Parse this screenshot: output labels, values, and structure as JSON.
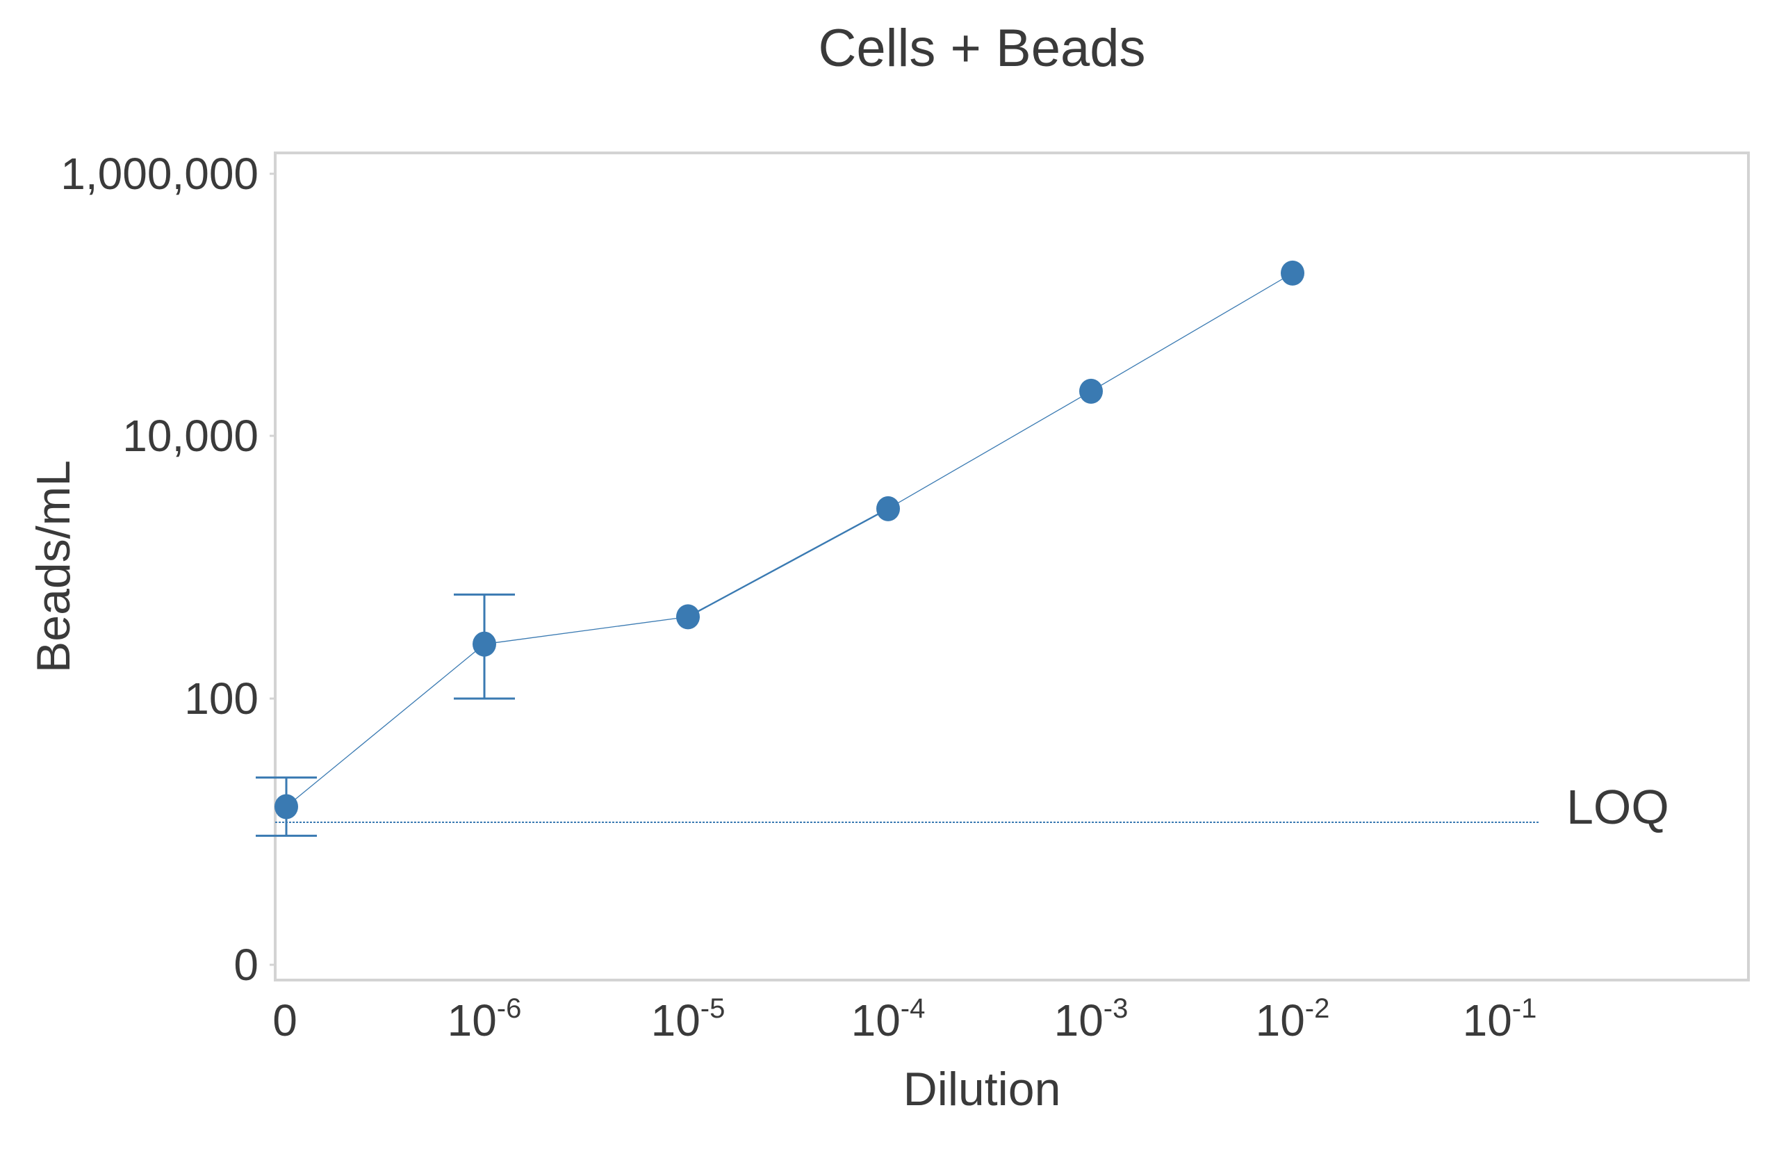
{
  "chart_data": {
    "type": "scatter",
    "title": "Cells + Beads",
    "xlabel": "Dilution",
    "ylabel": "Beads/mL",
    "x_ticks": [
      {
        "base": "0",
        "exp": ""
      },
      {
        "base": "10",
        "exp": "-6"
      },
      {
        "base": "10",
        "exp": "-5"
      },
      {
        "base": "10",
        "exp": "-4"
      },
      {
        "base": "10",
        "exp": "-3"
      },
      {
        "base": "10",
        "exp": "-2"
      },
      {
        "base": "10",
        "exp": "-1"
      }
    ],
    "y_ticks": [
      "1,000,000",
      "10,000",
      "100",
      "0"
    ],
    "y_scale": "log",
    "grid": false,
    "series": [
      {
        "color": "#3a7ab2",
        "points": [
          {
            "x": "0",
            "y": 15,
            "err_low": 9,
            "err_high": 25
          },
          {
            "x": "10^-6",
            "y": 260,
            "err_low": 100,
            "err_high": 620
          },
          {
            "x": "10^-5",
            "y": 420,
            "err_low": null,
            "err_high": null
          },
          {
            "x": "10^-4",
            "y": 2800,
            "err_low": null,
            "err_high": null
          },
          {
            "x": "10^-3",
            "y": 22000,
            "err_low": null,
            "err_high": null
          },
          {
            "x": "10^-2",
            "y": 175000,
            "err_low": null,
            "err_high": null
          }
        ]
      }
    ],
    "reference_line": {
      "label": "LOQ",
      "y": 8,
      "color": "#3a7ab2"
    }
  }
}
